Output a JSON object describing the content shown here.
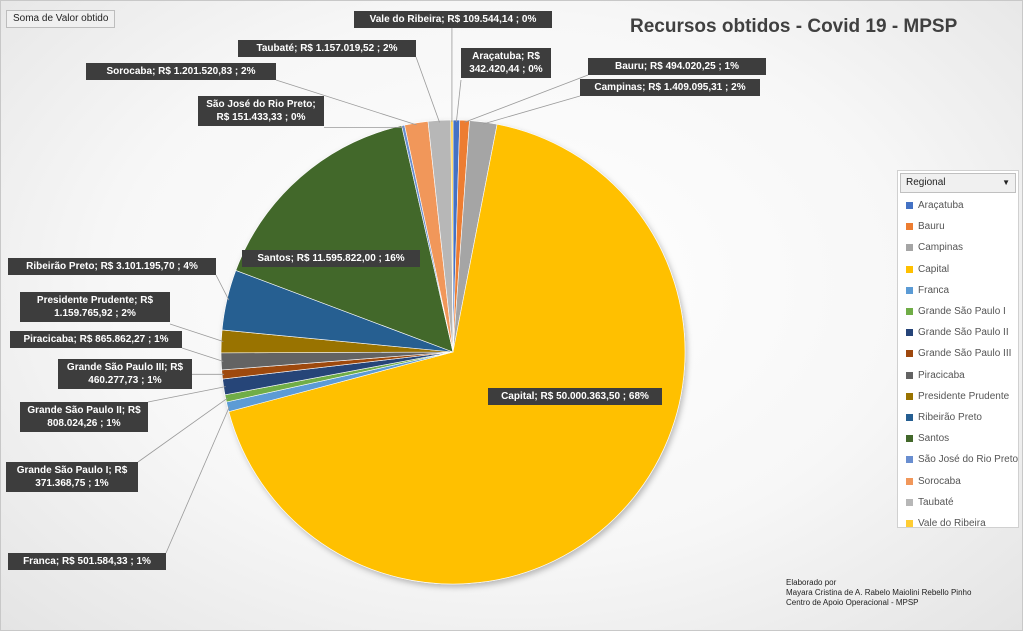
{
  "field_button": "Soma de Valor obtido",
  "legend_header": "Regional",
  "legend_dropdown_icon": "dropdown-arrow-icon",
  "credits": {
    "line1": "Elaborado por",
    "line2": "Mayara Cristina de A. Rabelo Maiolini Rebello Pinho",
    "line3": "Centro de Apoio Operacional - MPSP"
  },
  "chart_data": {
    "type": "pie",
    "title": "Recursos obtidos - Covid 19  - MPSP",
    "legend_position": "right",
    "slices": [
      {
        "name": "Araçatuba",
        "value": 342420.44,
        "color": "#4472c4",
        "label_line1": "Araçatuba;  R$",
        "label_line2": "342.420,44 ; 0%"
      },
      {
        "name": "Bauru",
        "value": 494020.25,
        "color": "#ed7d31",
        "label_line1": "Bauru;  R$ 494.020,25 ; 1%",
        "label_line2": ""
      },
      {
        "name": "Campinas",
        "value": 1409095.31,
        "color": "#a5a5a5",
        "label_line1": "Campinas;  R$ 1.409.095,31 ; 2%",
        "label_line2": ""
      },
      {
        "name": "Capital",
        "value": 50000363.5,
        "color": "#ffc000",
        "label_line1": "Capital;  R$ 50.000.363,50 ; 68%",
        "label_line2": ""
      },
      {
        "name": "Franca",
        "value": 501584.33,
        "color": "#5b9bd5",
        "label_line1": "Franca;  R$ 501.584,33 ; 1%",
        "label_line2": ""
      },
      {
        "name": "Grande São Paulo I",
        "value": 371368.75,
        "color": "#70ad47",
        "label_line1": "Grande São Paulo I;  R$",
        "label_line2": "371.368,75 ; 1%"
      },
      {
        "name": "Grande São Paulo II",
        "value": 808024.26,
        "color": "#264478",
        "label_line1": "Grande São Paulo II;  R$",
        "label_line2": "808.024,26 ; 1%"
      },
      {
        "name": "Grande São Paulo III",
        "value": 460277.73,
        "color": "#9e480e",
        "label_line1": "Grande São Paulo III;  R$",
        "label_line2": "460.277,73 ; 1%"
      },
      {
        "name": "Piracicaba",
        "value": 865862.27,
        "color": "#636363",
        "label_line1": "Piracicaba;  R$ 865.862,27 ; 1%",
        "label_line2": ""
      },
      {
        "name": "Presidente Prudente",
        "value": 1159765.92,
        "color": "#997300",
        "label_line1": "Presidente Prudente;  R$",
        "label_line2": "1.159.765,92 ; 2%"
      },
      {
        "name": "Ribeirão Preto",
        "value": 3101195.7,
        "color": "#255e91",
        "label_line1": "Ribeirão Preto;  R$ 3.101.195,70 ; 4%",
        "label_line2": ""
      },
      {
        "name": "Santos",
        "value": 11595822.0,
        "color": "#43682b",
        "label_line1": "Santos;  R$ 11.595.822,00 ; 16%",
        "label_line2": ""
      },
      {
        "name": "São José do Rio Preto",
        "value": 151433.33,
        "color": "#698ed0",
        "label_line1": "São José do Rio Preto;",
        "label_line2": "R$ 151.433,33 ; 0%"
      },
      {
        "name": "Sorocaba",
        "value": 1201520.83,
        "color": "#f1975a",
        "label_line1": "Sorocaba;  R$ 1.201.520,83 ; 2%",
        "label_line2": ""
      },
      {
        "name": "Taubaté",
        "value": 1157019.52,
        "color": "#b7b7b7",
        "label_line1": "Taubaté;  R$ 1.157.019,52 ; 2%",
        "label_line2": ""
      },
      {
        "name": "Vale do Ribeira",
        "value": 109544.14,
        "color": "#ffcd33",
        "label_line1": "Vale do Ribeira;  R$ 109.544,14 ; 0%",
        "label_line2": ""
      }
    ]
  }
}
